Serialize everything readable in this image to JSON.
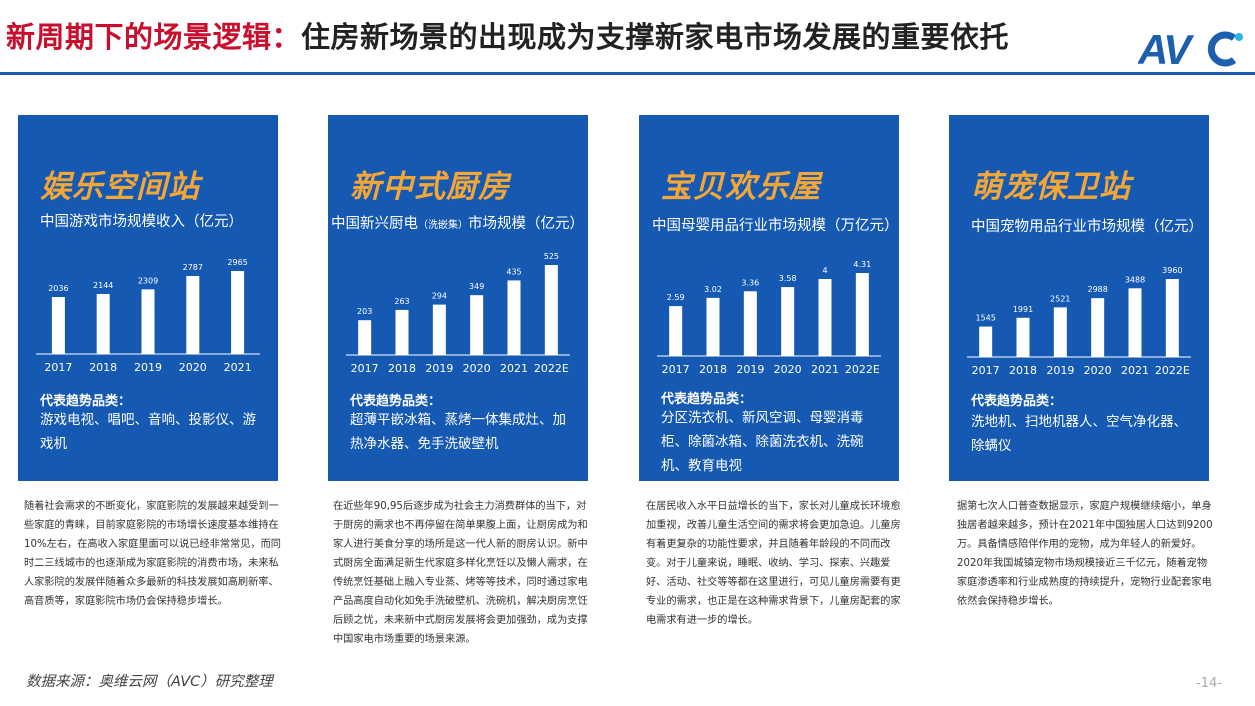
{
  "header": {
    "title_prefix": "新周期下的场景逻辑：",
    "title_main": "住房新场景的出现成为支撑新家电市场发展的重要依托",
    "logo_text": "AVC"
  },
  "colors": {
    "panel": "#1559b3",
    "accent_red": "#c8102e",
    "heading_orange": "#f4a637",
    "rule_blue": "#1b5fae"
  },
  "panels": [
    {
      "heading": "娱乐空间站",
      "subtitle": "中国游戏市场规模收入（亿元）",
      "trend_label": "代表趋势品类：",
      "trend_items": "游戏电视、唱吧、音响、投影仪、游戏机",
      "description": "随着社会需求的不断变化，家庭影院的发展越来越受到一些家庭的青睐，目前家庭影院的市场增长速度基本维持在10%左右，在高收入家庭里面可以说已经非常常见，而同时二三线城市的也逐渐成为家庭影院的消费市场，未来私人家影院的发展伴随着众多最新的科技发展如高刷新率、高音质等，家庭影院市场仍会保持稳步增长。"
    },
    {
      "heading": "新中式厨房",
      "subtitle_main": "中国新兴厨电",
      "subtitle_small": "（洗嵌集）",
      "subtitle_end": "市场规模（亿元）",
      "trend_label": "代表趋势品类：",
      "trend_items": "超薄平嵌冰箱、蒸烤一体集成灶、加热净水器、免手洗破壁机",
      "description": "在近些年90,95后逐步成为社会主力消费群体的当下，对于厨房的需求也不再停留在简单果腹上面，让厨房成为和家人进行美食分享的场所是这一代人新的厨房认识。新中式厨房全面满足新生代家庭多样化烹饪以及懒人需求，在传统烹饪基础上融入专业蒸、烤等等技术，同时通过家电产品高度自动化如免手洗破壁机、洗碗机，解决厨房烹饪后顾之忧，未来新中式厨房发展将会更加强劲，成为支撑中国家电市场重要的场景来源。"
    },
    {
      "heading": "宝贝欢乐屋",
      "subtitle": "中国母婴用品行业市场规模（万亿元）",
      "trend_label": "代表趋势品类：",
      "trend_items": "分区洗衣机、新风空调、母婴消毒柜、除菌冰箱、除菌洗衣机、洗碗机、教育电视",
      "description": "在居民收入水平日益增长的当下，家长对儿童成长环境愈加重视，改善儿童生活空间的需求将会更加急迫。儿童房有着更复杂的功能性要求，并且随着年龄段的不同而改变。对于儿童来说，睡眠、收纳、学习、探索、兴趣爱好、活动、社交等等都在这里进行，可见儿童房需要有更专业的需求，也正是在这种需求背景下，儿童房配套的家电需求有进一步的增长。"
    },
    {
      "heading": "萌宠保卫站",
      "subtitle": "中国宠物用品行业市场规模（亿元）",
      "trend_label": "代表趋势品类：",
      "trend_items": "洗地机、扫地机器人、空气净化器、除螨仪",
      "description": "据第七次人口普查数据显示，家庭户规模继续缩小，单身独居者越来越多，预计在2021年中国独居人口达到9200万。具备情感陪伴作用的宠物，成为年轻人的新爱好。2020年我国城镇宠物市场规模接近三千亿元，随着宠物家庭渗透率和行业成熟度的持续提升，宠物行业配套家电依然会保持稳步增长。"
    }
  ],
  "chart_data": [
    {
      "type": "bar",
      "categories": [
        "2017",
        "2018",
        "2019",
        "2020",
        "2021"
      ],
      "values": [
        2036,
        2144,
        2309,
        2787,
        2965
      ],
      "labels": [
        "2036",
        "2144",
        "2309",
        "2787",
        "2965"
      ]
    },
    {
      "type": "bar",
      "categories": [
        "2017",
        "2018",
        "2019",
        "2020",
        "2021",
        "2022E"
      ],
      "values": [
        203,
        263,
        294,
        349,
        435,
        525
      ],
      "labels": [
        "203",
        "263",
        "294",
        "349",
        "435",
        "525"
      ]
    },
    {
      "type": "bar",
      "categories": [
        "2017",
        "2018",
        "2019",
        "2020",
        "2021",
        "2022E"
      ],
      "values": [
        2.59,
        3.02,
        3.36,
        3.58,
        4,
        4.31
      ],
      "labels": [
        "2.59",
        "3.02",
        "3.36",
        "3.58",
        "4",
        "4.31"
      ]
    },
    {
      "type": "bar",
      "categories": [
        "2017",
        "2018",
        "2019",
        "2020",
        "2021",
        "2022E"
      ],
      "values": [
        1545,
        1991,
        2521,
        2988,
        3488,
        3960
      ],
      "labels": [
        "1545",
        "1991",
        "2521",
        "2988",
        "3488",
        "3960"
      ]
    }
  ],
  "footer": {
    "source": "数据来源：奥维云网（AVC）研究整理",
    "page_number": "-14-"
  }
}
